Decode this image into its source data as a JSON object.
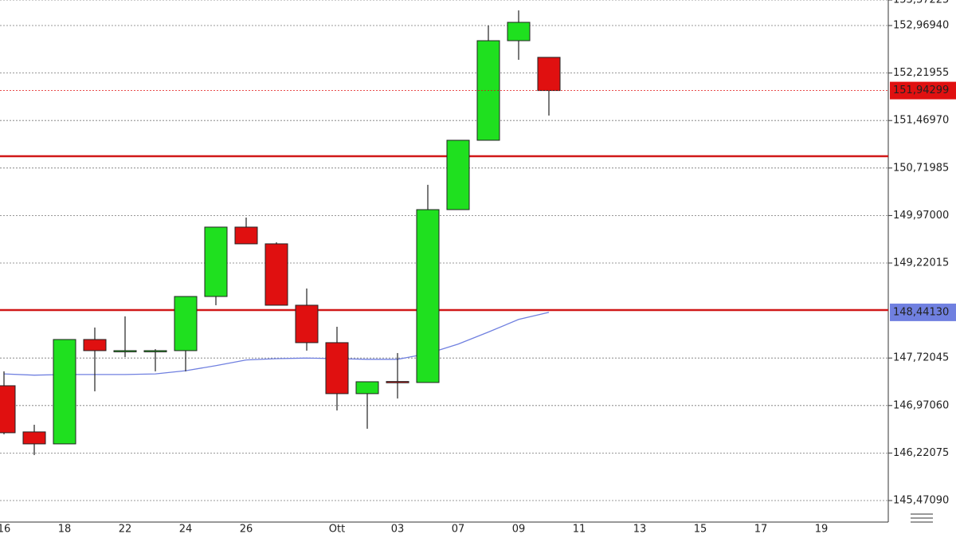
{
  "chart_data": {
    "type": "candlestick",
    "categories": [
      "16",
      null,
      "18",
      null,
      "22",
      null,
      "24",
      null,
      "26",
      null,
      null,
      "Ott",
      null,
      "03",
      null,
      "07",
      null,
      "09",
      null,
      "11",
      null,
      "13",
      null,
      "15",
      null,
      "17",
      null,
      "19",
      null
    ],
    "open": [
      147.283,
      146.554,
      146.365,
      148.013,
      147.837,
      147.837,
      147.837,
      148.692,
      149.787,
      149.523,
      148.554,
      147.963,
      147.158,
      147.35,
      147.334,
      150.063,
      151.158,
      152.73,
      152.467,
      null,
      null,
      null,
      null,
      null,
      null,
      null,
      null,
      null,
      null
    ],
    "high": [
      147.51,
      146.667,
      148.013,
      148.202,
      148.378,
      147.86,
      148.692,
      149.787,
      149.938,
      149.548,
      148.818,
      148.214,
      147.346,
      147.799,
      150.454,
      151.158,
      152.969,
      153.208,
      152.467,
      null,
      null,
      null,
      null,
      null,
      null,
      null,
      null,
      null,
      null
    ],
    "low": [
      146.516,
      146.189,
      146.365,
      147.195,
      147.736,
      147.51,
      147.51,
      148.554,
      149.523,
      148.554,
      147.837,
      146.893,
      146.604,
      147.082,
      147.334,
      150.063,
      151.158,
      152.428,
      151.548,
      null,
      null,
      null,
      null,
      null,
      null,
      null,
      null,
      null,
      null
    ],
    "close": [
      146.541,
      146.365,
      148.013,
      147.837,
      147.837,
      147.837,
      148.692,
      149.787,
      149.523,
      148.554,
      147.963,
      147.158,
      147.346,
      147.33,
      150.063,
      151.158,
      152.73,
      153.02,
      151.943,
      null,
      null,
      null,
      null,
      null,
      null,
      null,
      null,
      null,
      null
    ],
    "up_color": "#1fe01f",
    "down_color": "#e01010",
    "moving_average": {
      "color": "#7080e0",
      "values": [
        147.47,
        147.45,
        147.46,
        147.46,
        147.46,
        147.47,
        147.52,
        147.6,
        147.69,
        147.71,
        147.72,
        147.71,
        147.7,
        147.7,
        147.79,
        147.94,
        148.13,
        148.33,
        148.4413,
        null,
        null,
        null,
        null,
        null,
        null,
        null,
        null,
        null,
        null
      ]
    },
    "levels": [
      150.906,
      148.478
    ],
    "level_color": "#d01818",
    "current_price": {
      "value": 151.94299,
      "label": "151,94299"
    },
    "ma_price": {
      "value": 148.4413,
      "label": "148,44130"
    },
    "ylim": [
      145.131,
      153.37225
    ],
    "yticks": [
      {
        "value": 145.4709,
        "label": "145,47090"
      },
      {
        "value": 146.22075,
        "label": "146,22075"
      },
      {
        "value": 146.9706,
        "label": "146,97060"
      },
      {
        "value": 147.72045,
        "label": "147,72045"
      },
      {
        "value": 149.22015,
        "label": "149,22015"
      },
      {
        "value": 149.97,
        "label": "149,97000"
      },
      {
        "value": 150.71985,
        "label": "150,71985"
      },
      {
        "value": 151.4697,
        "label": "151,46970"
      },
      {
        "value": 152.21955,
        "label": "152,21955"
      },
      {
        "value": 152.9694,
        "label": "152,96940"
      },
      {
        "value": 153.37225,
        "label": "153,37225"
      }
    ],
    "grid": true
  }
}
